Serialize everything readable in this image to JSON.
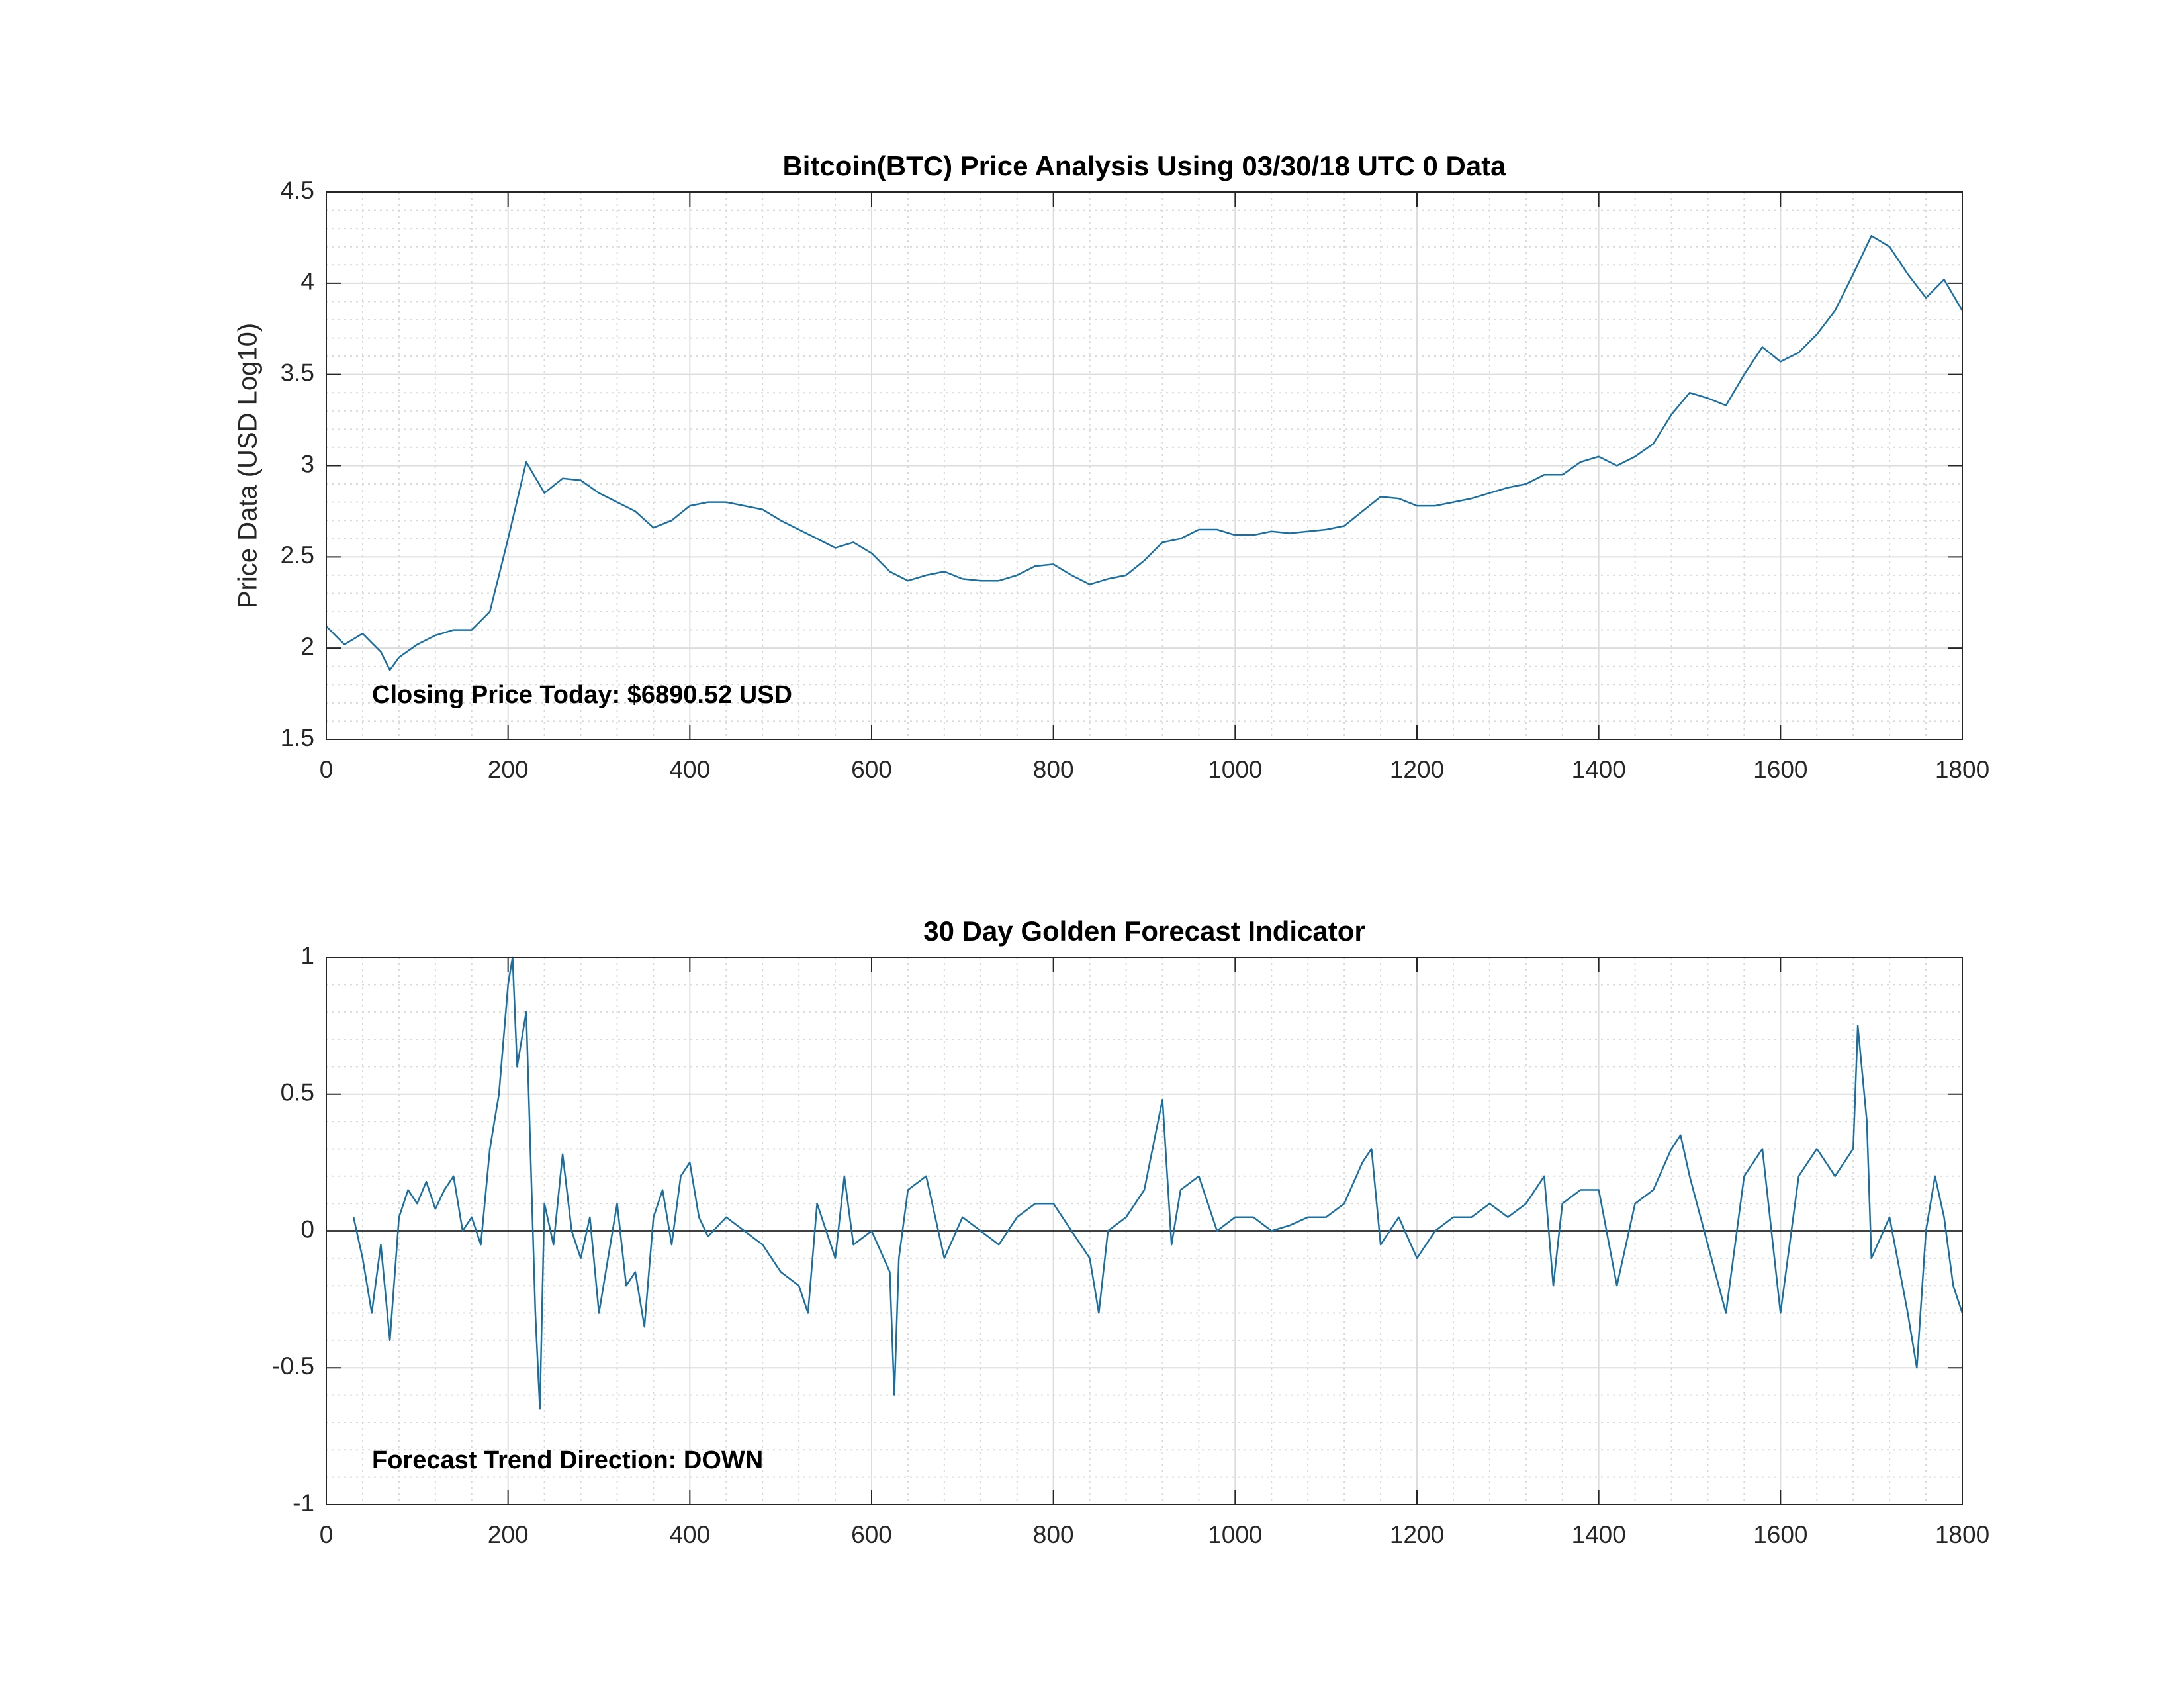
{
  "chart_data": [
    {
      "type": "line",
      "title": "Bitcoin(BTC) Price Analysis Using 03/30/18 UTC 0 Data",
      "ylabel": "Price Data (USD Log10)",
      "annotation": "Closing Price Today: $6890.52 USD",
      "x": [
        0,
        20,
        40,
        60,
        70,
        80,
        100,
        120,
        140,
        160,
        180,
        200,
        220,
        240,
        260,
        280,
        300,
        320,
        340,
        360,
        380,
        400,
        420,
        440,
        460,
        480,
        500,
        520,
        540,
        560,
        580,
        600,
        620,
        640,
        660,
        680,
        700,
        720,
        740,
        760,
        780,
        800,
        820,
        840,
        860,
        880,
        900,
        920,
        940,
        960,
        980,
        1000,
        1020,
        1040,
        1060,
        1080,
        1100,
        1120,
        1140,
        1160,
        1180,
        1200,
        1220,
        1240,
        1260,
        1280,
        1300,
        1320,
        1340,
        1360,
        1380,
        1400,
        1420,
        1440,
        1460,
        1480,
        1500,
        1520,
        1540,
        1560,
        1580,
        1600,
        1620,
        1640,
        1660,
        1680,
        1700,
        1720,
        1740,
        1760,
        1780,
        1800
      ],
      "series": [
        {
          "color": "#1a6fa0",
          "values": [
            2.12,
            2.02,
            2.08,
            1.98,
            1.88,
            1.95,
            2.02,
            2.07,
            2.1,
            2.1,
            2.2,
            2.6,
            3.02,
            2.85,
            2.93,
            2.92,
            2.85,
            2.8,
            2.75,
            2.66,
            2.7,
            2.78,
            2.8,
            2.8,
            2.78,
            2.76,
            2.7,
            2.65,
            2.6,
            2.55,
            2.58,
            2.52,
            2.42,
            2.37,
            2.4,
            2.42,
            2.38,
            2.37,
            2.37,
            2.4,
            2.45,
            2.46,
            2.4,
            2.35,
            2.38,
            2.4,
            2.48,
            2.58,
            2.6,
            2.65,
            2.65,
            2.62,
            2.62,
            2.64,
            2.63,
            2.64,
            2.65,
            2.67,
            2.75,
            2.83,
            2.82,
            2.78,
            2.78,
            2.8,
            2.82,
            2.85,
            2.88,
            2.9,
            2.95,
            2.95,
            3.02,
            3.05,
            3.0,
            3.05,
            3.12,
            3.28,
            3.4,
            3.37,
            3.33,
            3.5,
            3.65,
            3.57,
            3.62,
            3.72,
            3.85,
            4.05,
            4.26,
            4.2,
            4.05,
            3.92,
            4.02,
            3.85
          ]
        }
      ],
      "xlim": [
        0,
        1800
      ],
      "xticks": [
        0,
        200,
        400,
        600,
        800,
        1000,
        1200,
        1400,
        1600,
        1800
      ],
      "ylim": [
        1.5,
        4.5
      ],
      "yticks": [
        1.5,
        2,
        2.5,
        3,
        3.5,
        4,
        4.5
      ],
      "grid": true
    },
    {
      "type": "line",
      "title": "30 Day Golden Forecast Indicator",
      "annotation": "Forecast Trend Direction: DOWN",
      "x": [
        30,
        40,
        50,
        60,
        70,
        80,
        90,
        100,
        110,
        120,
        130,
        140,
        150,
        160,
        170,
        180,
        190,
        200,
        205,
        210,
        220,
        230,
        235,
        240,
        250,
        260,
        270,
        280,
        290,
        300,
        310,
        320,
        330,
        340,
        350,
        360,
        370,
        380,
        390,
        400,
        410,
        420,
        440,
        460,
        480,
        500,
        520,
        530,
        540,
        560,
        570,
        580,
        600,
        620,
        625,
        630,
        640,
        660,
        680,
        700,
        720,
        740,
        760,
        780,
        800,
        820,
        840,
        850,
        860,
        880,
        900,
        920,
        930,
        940,
        960,
        980,
        1000,
        1020,
        1040,
        1060,
        1080,
        1100,
        1120,
        1140,
        1150,
        1160,
        1180,
        1200,
        1220,
        1240,
        1260,
        1280,
        1300,
        1320,
        1340,
        1350,
        1360,
        1380,
        1400,
        1420,
        1440,
        1460,
        1480,
        1490,
        1500,
        1520,
        1540,
        1560,
        1580,
        1600,
        1620,
        1640,
        1660,
        1680,
        1685,
        1695,
        1700,
        1720,
        1740,
        1750,
        1760,
        1770,
        1780,
        1790,
        1800
      ],
      "series": [
        {
          "color": "#1a6fa0",
          "values": [
            0.05,
            -0.1,
            -0.3,
            -0.05,
            -0.4,
            0.05,
            0.15,
            0.1,
            0.18,
            0.08,
            0.15,
            0.2,
            0.0,
            0.05,
            -0.05,
            0.3,
            0.5,
            0.9,
            1.0,
            0.6,
            0.8,
            -0.3,
            -0.65,
            0.1,
            -0.05,
            0.28,
            0.0,
            -0.1,
            0.05,
            -0.3,
            -0.1,
            0.1,
            -0.2,
            -0.15,
            -0.35,
            0.05,
            0.15,
            -0.05,
            0.2,
            0.25,
            0.05,
            -0.02,
            0.05,
            0.0,
            -0.05,
            -0.15,
            -0.2,
            -0.3,
            0.1,
            -0.1,
            0.2,
            -0.05,
            0.0,
            -0.15,
            -0.6,
            -0.1,
            0.15,
            0.2,
            -0.1,
            0.05,
            0.0,
            -0.05,
            0.05,
            0.1,
            0.1,
            0.0,
            -0.1,
            -0.3,
            0.0,
            0.05,
            0.15,
            0.48,
            -0.05,
            0.15,
            0.2,
            0.0,
            0.05,
            0.05,
            0.0,
            0.02,
            0.05,
            0.05,
            0.1,
            0.25,
            0.3,
            -0.05,
            0.05,
            -0.1,
            0.0,
            0.05,
            0.05,
            0.1,
            0.05,
            0.1,
            0.2,
            -0.2,
            0.1,
            0.15,
            0.15,
            -0.2,
            0.1,
            0.15,
            0.3,
            0.35,
            0.2,
            -0.05,
            -0.3,
            0.2,
            0.3,
            -0.3,
            0.2,
            0.3,
            0.2,
            0.3,
            0.75,
            0.4,
            -0.1,
            0.05,
            -0.3,
            -0.5,
            0.0,
            0.2,
            0.05,
            -0.2,
            -0.3
          ]
        }
      ],
      "xlim": [
        0,
        1800
      ],
      "xticks": [
        0,
        200,
        400,
        600,
        800,
        1000,
        1200,
        1400,
        1600,
        1800
      ],
      "ylim": [
        -1,
        1
      ],
      "yticks": [
        -1,
        -0.5,
        0,
        0.5,
        1
      ],
      "grid": true
    }
  ]
}
